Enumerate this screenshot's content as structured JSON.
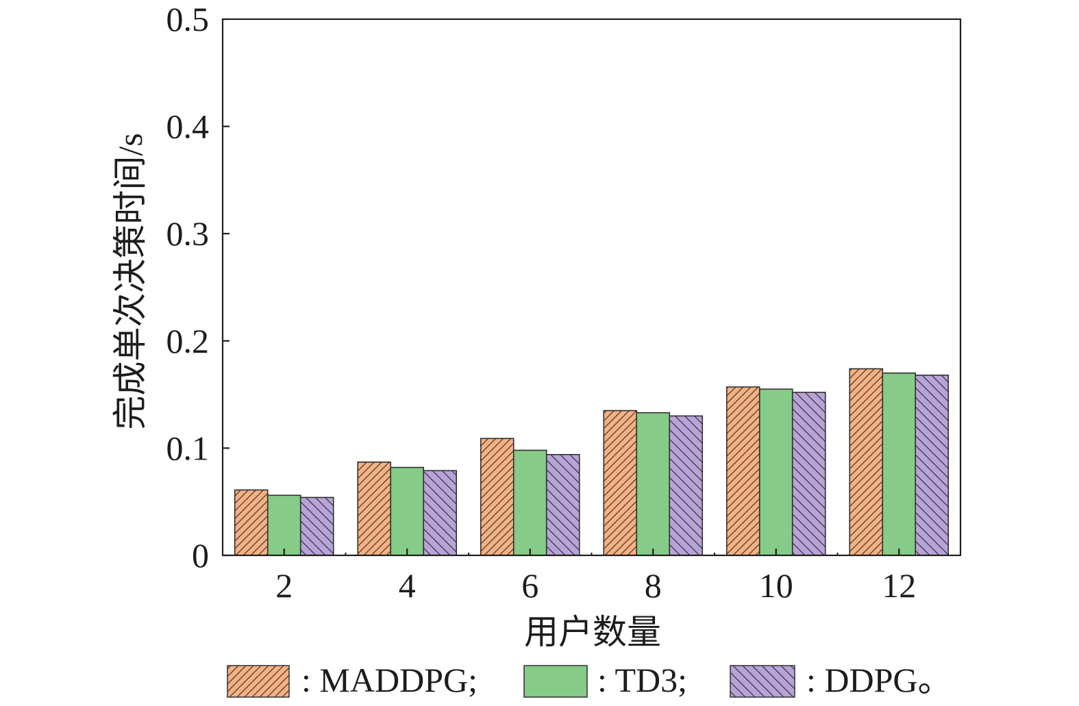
{
  "chart_data": {
    "type": "bar",
    "xlabel": "用户数量",
    "ylabel": "完成单次决策时间/s",
    "categories": [
      "2",
      "4",
      "6",
      "8",
      "10",
      "12"
    ],
    "yticks": [
      "0",
      "0.1",
      "0.2",
      "0.3",
      "0.4",
      "0.5"
    ],
    "ylim": [
      0,
      0.5
    ],
    "grid": false,
    "legend_position": "bottom",
    "series": [
      {
        "name": "MADDPG",
        "color": "#f4b183",
        "values": [
          0.061,
          0.087,
          0.109,
          0.135,
          0.157,
          0.174
        ]
      },
      {
        "name": "TD3",
        "color": "#86cb88",
        "values": [
          0.056,
          0.082,
          0.098,
          0.133,
          0.155,
          0.17
        ]
      },
      {
        "name": "DDPG",
        "color": "#b7a4d4",
        "values": [
          0.054,
          0.079,
          0.094,
          0.13,
          0.152,
          0.168
        ]
      }
    ]
  },
  "legend": {
    "items": [
      {
        "prefix": ": ",
        "suffix": ";"
      },
      {
        "prefix": ": ",
        "suffix": ";"
      },
      {
        "prefix": ": ",
        "suffix": "。"
      }
    ]
  }
}
